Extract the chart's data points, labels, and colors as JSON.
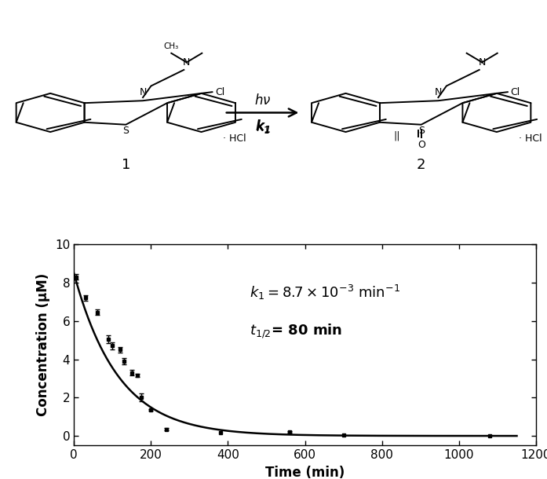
{
  "k1": 0.0087,
  "C0": 8.5,
  "data_points": [
    {
      "t": 5,
      "C": 8.3,
      "err": 0.15
    },
    {
      "t": 30,
      "C": 7.2,
      "err": 0.15
    },
    {
      "t": 60,
      "C": 6.45,
      "err": 0.15
    },
    {
      "t": 90,
      "C": 5.05,
      "err": 0.2
    },
    {
      "t": 100,
      "C": 4.7,
      "err": 0.2
    },
    {
      "t": 120,
      "C": 4.5,
      "err": 0.15
    },
    {
      "t": 130,
      "C": 3.9,
      "err": 0.15
    },
    {
      "t": 150,
      "C": 3.3,
      "err": 0.15
    },
    {
      "t": 165,
      "C": 3.15,
      "err": 0.08
    },
    {
      "t": 175,
      "C": 2.0,
      "err": 0.2
    },
    {
      "t": 200,
      "C": 1.35,
      "err": 0.05
    },
    {
      "t": 240,
      "C": 0.35,
      "err": 0.05
    },
    {
      "t": 380,
      "C": 0.15,
      "err": 0.0
    },
    {
      "t": 560,
      "C": 0.2,
      "err": 0.05
    },
    {
      "t": 700,
      "C": 0.03,
      "err": 0.0
    },
    {
      "t": 1080,
      "C": 0.02,
      "err": 0.0
    }
  ],
  "xlabel": "Time (min)",
  "ylabel": "Concentration (μM)",
  "xlim": [
    0,
    1200
  ],
  "ylim": [
    -0.5,
    10
  ],
  "xticks": [
    0,
    200,
    400,
    600,
    800,
    1000,
    1200
  ],
  "yticks": [
    0,
    2,
    4,
    6,
    8,
    10
  ],
  "curve_color": "#000000",
  "marker_color": "#000000",
  "background_color": "#ffffff"
}
